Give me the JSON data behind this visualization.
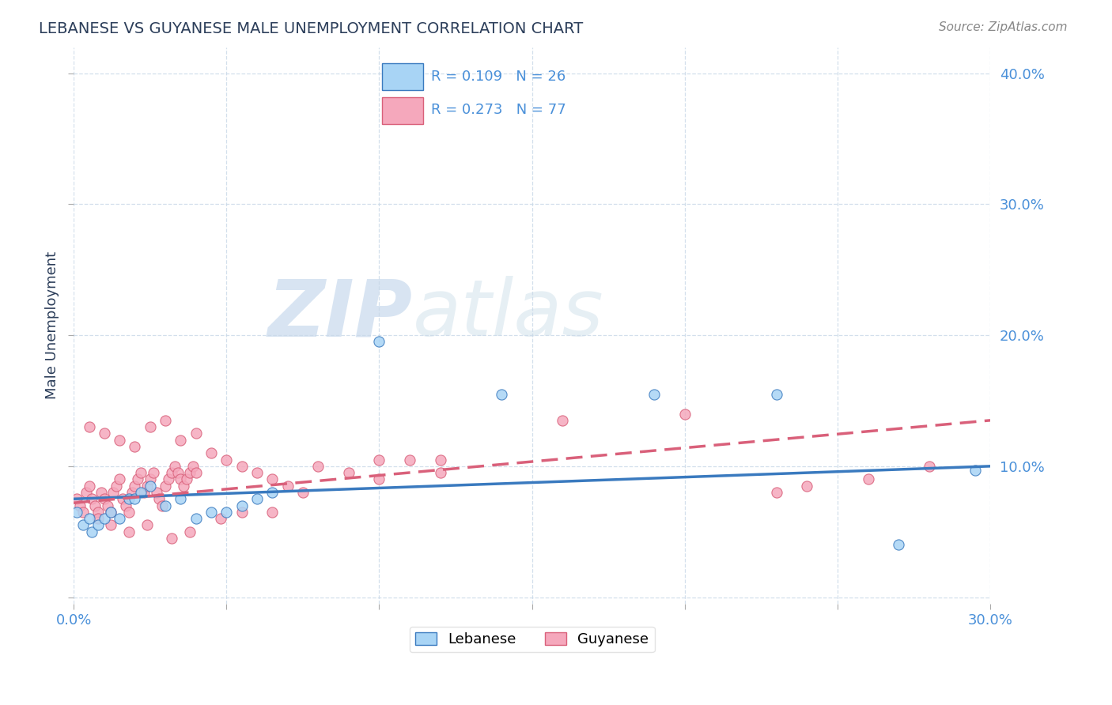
{
  "title": "LEBANESE VS GUYANESE MALE UNEMPLOYMENT CORRELATION CHART",
  "source": "Source: ZipAtlas.com",
  "ylabel": "Male Unemployment",
  "xlim": [
    0.0,
    0.3
  ],
  "ylim": [
    -0.005,
    0.42
  ],
  "xticks": [
    0.0,
    0.05,
    0.1,
    0.15,
    0.2,
    0.25,
    0.3
  ],
  "xtick_labels": [
    "0.0%",
    "",
    "",
    "",
    "",
    "",
    "30.0%"
  ],
  "yticks": [
    0.0,
    0.1,
    0.2,
    0.3,
    0.4
  ],
  "ytick_labels": [
    "",
    "10.0%",
    "20.0%",
    "30.0%",
    "40.0%"
  ],
  "legend_labels": [
    "Lebanese",
    "Guyanese"
  ],
  "legend_r": [
    "R = 0.109",
    "R = 0.273"
  ],
  "legend_n": [
    "N = 26",
    "N = 77"
  ],
  "scatter_color_lebanese": "#a8d4f5",
  "scatter_color_guyanese": "#f5a8bc",
  "line_color_lebanese": "#3a7abf",
  "line_color_guyanese": "#d9607a",
  "title_color": "#2c3e5a",
  "axis_color": "#4a90d9",
  "watermark1": "ZIP",
  "watermark2": "atlas",
  "leb_line_x0": 0.0,
  "leb_line_x1": 0.3,
  "leb_line_y0": 0.075,
  "leb_line_y1": 0.1,
  "guy_line_x0": 0.0,
  "guy_line_x1": 0.3,
  "guy_line_y0": 0.072,
  "guy_line_y1": 0.135,
  "lebanese_x": [
    0.001,
    0.003,
    0.005,
    0.006,
    0.008,
    0.01,
    0.012,
    0.015,
    0.018,
    0.02,
    0.022,
    0.025,
    0.03,
    0.035,
    0.04,
    0.045,
    0.05,
    0.055,
    0.06,
    0.065,
    0.1,
    0.14,
    0.19,
    0.23,
    0.27,
    0.295
  ],
  "lebanese_y": [
    0.065,
    0.055,
    0.06,
    0.05,
    0.055,
    0.06,
    0.065,
    0.06,
    0.075,
    0.075,
    0.08,
    0.085,
    0.07,
    0.075,
    0.06,
    0.065,
    0.065,
    0.07,
    0.075,
    0.08,
    0.195,
    0.155,
    0.155,
    0.155,
    0.04,
    0.097
  ],
  "guyanese_x": [
    0.001,
    0.002,
    0.003,
    0.004,
    0.005,
    0.006,
    0.007,
    0.008,
    0.009,
    0.01,
    0.011,
    0.012,
    0.013,
    0.014,
    0.015,
    0.016,
    0.017,
    0.018,
    0.019,
    0.02,
    0.021,
    0.022,
    0.023,
    0.024,
    0.025,
    0.026,
    0.027,
    0.028,
    0.029,
    0.03,
    0.031,
    0.032,
    0.033,
    0.034,
    0.035,
    0.036,
    0.037,
    0.038,
    0.039,
    0.04,
    0.005,
    0.01,
    0.015,
    0.02,
    0.025,
    0.03,
    0.035,
    0.04,
    0.045,
    0.05,
    0.055,
    0.06,
    0.065,
    0.07,
    0.075,
    0.08,
    0.09,
    0.1,
    0.11,
    0.12,
    0.008,
    0.012,
    0.018,
    0.024,
    0.032,
    0.038,
    0.048,
    0.055,
    0.065,
    0.1,
    0.12,
    0.16,
    0.2,
    0.23,
    0.24,
    0.26,
    0.28
  ],
  "guyanese_y": [
    0.075,
    0.07,
    0.065,
    0.08,
    0.085,
    0.075,
    0.07,
    0.065,
    0.08,
    0.075,
    0.07,
    0.065,
    0.08,
    0.085,
    0.09,
    0.075,
    0.07,
    0.065,
    0.08,
    0.085,
    0.09,
    0.095,
    0.08,
    0.085,
    0.09,
    0.095,
    0.08,
    0.075,
    0.07,
    0.085,
    0.09,
    0.095,
    0.1,
    0.095,
    0.09,
    0.085,
    0.09,
    0.095,
    0.1,
    0.095,
    0.13,
    0.125,
    0.12,
    0.115,
    0.13,
    0.135,
    0.12,
    0.125,
    0.11,
    0.105,
    0.1,
    0.095,
    0.09,
    0.085,
    0.08,
    0.1,
    0.095,
    0.105,
    0.105,
    0.095,
    0.06,
    0.055,
    0.05,
    0.055,
    0.045,
    0.05,
    0.06,
    0.065,
    0.065,
    0.09,
    0.105,
    0.135,
    0.14,
    0.08,
    0.085,
    0.09,
    0.1
  ]
}
